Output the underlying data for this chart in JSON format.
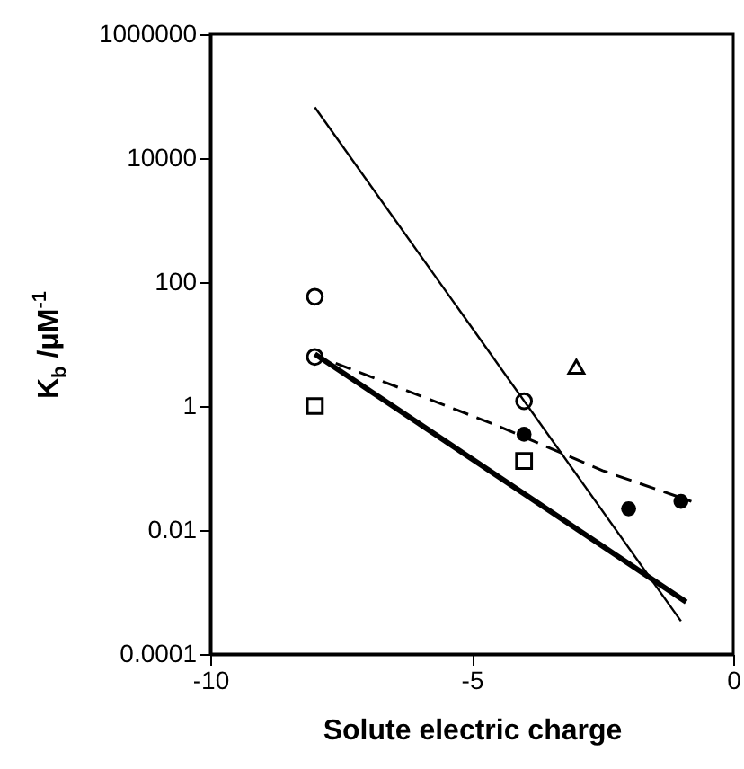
{
  "chart_data": {
    "type": "scatter",
    "xlabel": "Solute electric charge",
    "ylabel": "K$_{b}$ /μM$^{-1}$",
    "log": "y",
    "xlim": [
      -10,
      0
    ],
    "xticks": [
      -10,
      -5,
      0
    ],
    "ylim": [
      0.0001,
      1000000
    ],
    "yticks": [
      0.0001,
      0.01,
      1,
      100,
      10000,
      1000000
    ],
    "series": [
      {
        "type": "line",
        "color": "#000000",
        "line_style": "solid",
        "x": [
          -8,
          -1
        ],
        "values": [
          66000,
          0.00034
        ]
      },
      {
        "type": "line",
        "color": "#000000",
        "line_style": "solid",
        "x": [
          -8,
          -0.9
        ],
        "values": [
          6.9,
          0.00069
        ]
      },
      {
        "type": "line",
        "color": "#000000",
        "line_style": "dashed",
        "x": [
          -7.6,
          -4.5,
          -2.5,
          -0.8
        ],
        "values": [
          4.9,
          0.48,
          0.091,
          0.029
        ]
      },
      {
        "color": "#000000",
        "marker": "circle",
        "x": [
          -8,
          -8,
          -4
        ],
        "values": [
          58,
          6.2,
          1.2
        ]
      },
      {
        "color": "#000000",
        "marker": "square",
        "x": [
          -8,
          -4
        ],
        "values": [
          1.0,
          0.13
        ]
      },
      {
        "color": "#000000",
        "marker": "triangle",
        "x": [
          -3
        ],
        "values": [
          4.3
        ]
      },
      {
        "color": "#000000",
        "marker": "circle",
        "x": [
          -4,
          -2,
          -1
        ],
        "values": [
          0.35,
          0.022,
          0.029
        ]
      }
    ]
  }
}
